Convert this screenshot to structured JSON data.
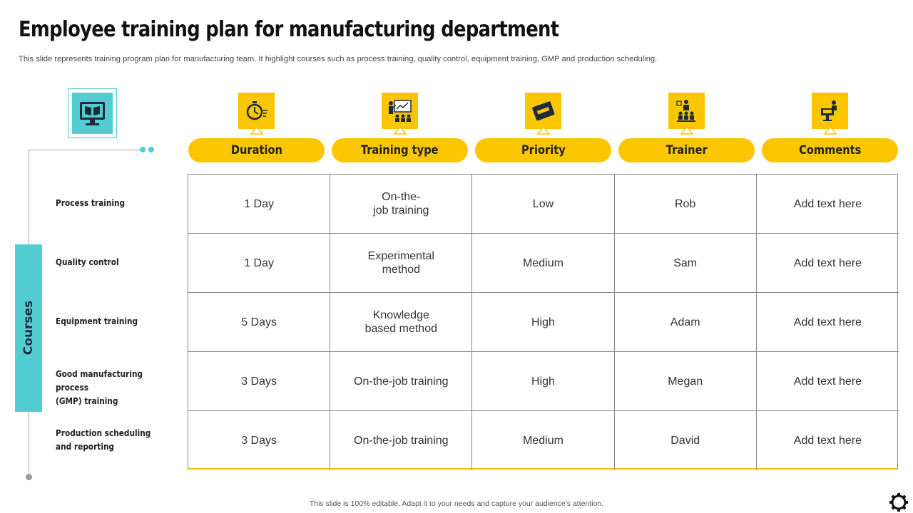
{
  "slide": {
    "title": "Employee training plan for manufacturing department",
    "subtitle": "This slide represents training program plan for manufacturing team. It highlight courses such as process training, quality control, equipment training, GMP and production scheduling.",
    "side_label": "Courses",
    "footer": "This slide is 100% editable.  Adapt it to your needs and capture your audience's attention."
  },
  "columns": [
    {
      "label": "Duration",
      "icon": "stopwatch-icon"
    },
    {
      "label": "Training type",
      "icon": "presentation-icon"
    },
    {
      "label": "Priority",
      "icon": "priority-tag-icon"
    },
    {
      "label": "Trainer",
      "icon": "trainer-audience-icon"
    },
    {
      "label": "Comments",
      "icon": "speaker-podium-icon"
    }
  ],
  "rows": [
    {
      "label": "Process training",
      "cells": [
        "1 Day",
        "On-the-\njob training",
        "Low",
        "Rob",
        "Add text here"
      ]
    },
    {
      "label": "Quality control",
      "cells": [
        "1 Day",
        "Experimental\nmethod",
        "Medium",
        "Sam",
        "Add text here"
      ]
    },
    {
      "label": "Equipment training",
      "cells": [
        "5 Days",
        "Knowledge\nbased method",
        "High",
        "Adam",
        "Add text here"
      ]
    },
    {
      "label": "Good manufacturing process\n(GMP) training",
      "cells": [
        "3 Days",
        "On-the-job  training",
        "High",
        "Megan",
        "Add text here"
      ]
    },
    {
      "label": "Production scheduling\nand reporting",
      "cells": [
        "3 Days",
        "On-the-job  training",
        "Medium",
        "David",
        "Add text here"
      ]
    }
  ],
  "icons": {
    "left": "online-book-monitor-icon",
    "corner": "gear-icon"
  },
  "colors": {
    "accent_yellow": "#fbc600",
    "accent_teal": "#53cdd1",
    "grid": "#888888"
  }
}
